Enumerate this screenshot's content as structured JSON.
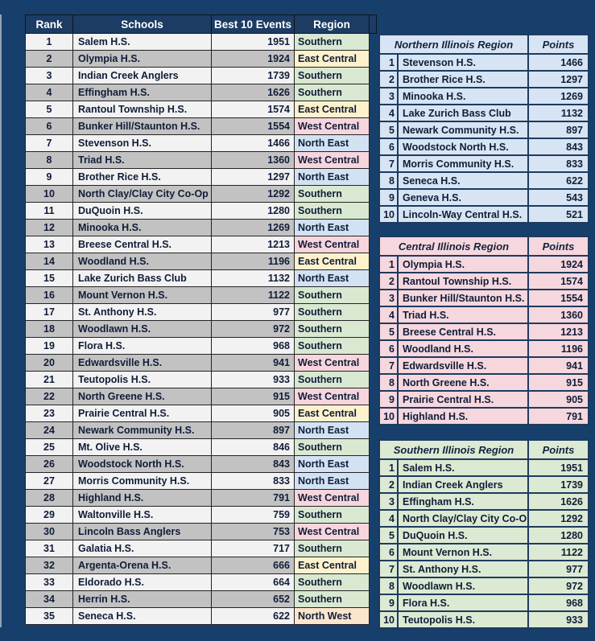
{
  "page": {
    "background": "#16406b",
    "header_bg": "#1c3c64",
    "stripe_light": "#f2f2f2",
    "stripe_gray": "#c2c2c2",
    "border_dark": "#232323",
    "regional_border": "#1e3a5f"
  },
  "region_colors": {
    "Southern": "#d9e8d1",
    "East Central": "#fdf2cc",
    "West Central": "#f6d5dc",
    "North East": "#d3e2f3",
    "North West": "#fce5cd"
  },
  "main_table": {
    "headers": {
      "rank": "Rank",
      "school": "Schools",
      "points": "Best 10 Events",
      "region": "Region"
    },
    "rows": [
      {
        "rank": "1",
        "school": "Salem H.S.",
        "points": "1951",
        "region": "Southern"
      },
      {
        "rank": "2",
        "school": "Olympia H.S.",
        "points": "1924",
        "region": "East Central"
      },
      {
        "rank": "3",
        "school": "Indian Creek Anglers",
        "points": "1739",
        "region": "Southern"
      },
      {
        "rank": "4",
        "school": "Effingham H.S.",
        "points": "1626",
        "region": "Southern"
      },
      {
        "rank": "5",
        "school": "Rantoul Township H.S.",
        "points": "1574",
        "region": "East Central"
      },
      {
        "rank": "6",
        "school": "Bunker Hill/Staunton H.S.",
        "points": "1554",
        "region": "West Central"
      },
      {
        "rank": "7",
        "school": "Stevenson H.S.",
        "points": "1466",
        "region": "North East"
      },
      {
        "rank": "8",
        "school": "Triad H.S.",
        "points": "1360",
        "region": "West Central"
      },
      {
        "rank": "9",
        "school": "Brother Rice H.S.",
        "points": "1297",
        "region": "North East"
      },
      {
        "rank": "10",
        "school": "North Clay/Clay City Co-Op",
        "points": "1292",
        "region": "Southern"
      },
      {
        "rank": "11",
        "school": "DuQuoin H.S.",
        "points": "1280",
        "region": "Southern"
      },
      {
        "rank": "12",
        "school": "Minooka H.S.",
        "points": "1269",
        "region": "North East"
      },
      {
        "rank": "13",
        "school": "Breese Central H.S.",
        "points": "1213",
        "region": "West Central"
      },
      {
        "rank": "14",
        "school": "Woodland H.S.",
        "points": "1196",
        "region": "East Central"
      },
      {
        "rank": "15",
        "school": "Lake Zurich Bass Club",
        "points": "1132",
        "region": "North East"
      },
      {
        "rank": "16",
        "school": "Mount Vernon H.S.",
        "points": "1122",
        "region": "Southern"
      },
      {
        "rank": "17",
        "school": "St. Anthony H.S.",
        "points": "977",
        "region": "Southern"
      },
      {
        "rank": "18",
        "school": "Woodlawn H.S.",
        "points": "972",
        "region": "Southern"
      },
      {
        "rank": "19",
        "school": "Flora H.S.",
        "points": "968",
        "region": "Southern"
      },
      {
        "rank": "20",
        "school": "Edwardsville H.S.",
        "points": "941",
        "region": "West Central"
      },
      {
        "rank": "21",
        "school": "Teutopolis H.S.",
        "points": "933",
        "region": "Southern"
      },
      {
        "rank": "22",
        "school": "North Greene H.S.",
        "points": "915",
        "region": "West Central"
      },
      {
        "rank": "23",
        "school": "Prairie Central H.S.",
        "points": "905",
        "region": "East Central"
      },
      {
        "rank": "24",
        "school": "Newark Community H.S.",
        "points": "897",
        "region": "North East"
      },
      {
        "rank": "25",
        "school": "Mt. Olive H.S.",
        "points": "846",
        "region": "Southern"
      },
      {
        "rank": "26",
        "school": "Woodstock North H.S.",
        "points": "843",
        "region": "North East"
      },
      {
        "rank": "27",
        "school": "Morris Community H.S.",
        "points": "833",
        "region": "North East"
      },
      {
        "rank": "28",
        "school": "Highland H.S.",
        "points": "791",
        "region": "West Central"
      },
      {
        "rank": "29",
        "school": "Waltonville H.S.",
        "points": "759",
        "region": "Southern"
      },
      {
        "rank": "30",
        "school": "Lincoln Bass Anglers",
        "points": "753",
        "region": "West Central"
      },
      {
        "rank": "31",
        "school": "Galatia H.S.",
        "points": "717",
        "region": "Southern"
      },
      {
        "rank": "32",
        "school": "Argenta-Orena H.S.",
        "points": "666",
        "region": "East Central"
      },
      {
        "rank": "33",
        "school": "Eldorado H.S.",
        "points": "664",
        "region": "Southern"
      },
      {
        "rank": "34",
        "school": "Herrin H.S.",
        "points": "652",
        "region": "Southern"
      },
      {
        "rank": "35",
        "school": "Seneca H.S.",
        "points": "622",
        "region": "North West"
      }
    ]
  },
  "region_tables": [
    {
      "title": "Northern Illinois Region",
      "points_label": "Points",
      "color": "#d6e4f4",
      "rows": [
        {
          "rank": "1",
          "school": "Stevenson H.S.",
          "points": "1466"
        },
        {
          "rank": "2",
          "school": "Brother Rice H.S.",
          "points": "1297"
        },
        {
          "rank": "3",
          "school": "Minooka H.S.",
          "points": "1269"
        },
        {
          "rank": "4",
          "school": "Lake Zurich Bass Club",
          "points": "1132"
        },
        {
          "rank": "5",
          "school": "Newark Community H.S.",
          "points": "897"
        },
        {
          "rank": "6",
          "school": "Woodstock North H.S.",
          "points": "843"
        },
        {
          "rank": "7",
          "school": "Morris Community H.S.",
          "points": "833"
        },
        {
          "rank": "8",
          "school": "Seneca H.S.",
          "points": "622"
        },
        {
          "rank": "9",
          "school": "Geneva H.S.",
          "points": "543"
        },
        {
          "rank": "10",
          "school": "Lincoln-Way Central H.S.",
          "points": "521"
        }
      ]
    },
    {
      "title": "Central Illinois Region",
      "points_label": "Points",
      "color": "#f5d7dd",
      "rows": [
        {
          "rank": "1",
          "school": "Olympia H.S.",
          "points": "1924"
        },
        {
          "rank": "2",
          "school": "Rantoul Township H.S.",
          "points": "1574"
        },
        {
          "rank": "3",
          "school": "Bunker Hill/Staunton H.S.",
          "points": "1554"
        },
        {
          "rank": "4",
          "school": "Triad H.S.",
          "points": "1360"
        },
        {
          "rank": "5",
          "school": "Breese Central H.S.",
          "points": "1213"
        },
        {
          "rank": "6",
          "school": "Woodland H.S.",
          "points": "1196"
        },
        {
          "rank": "7",
          "school": "Edwardsville H.S.",
          "points": "941"
        },
        {
          "rank": "8",
          "school": "North Greene H.S.",
          "points": "915"
        },
        {
          "rank": "9",
          "school": "Prairie Central H.S.",
          "points": "905"
        },
        {
          "rank": "10",
          "school": "Highland H.S.",
          "points": "791"
        }
      ]
    },
    {
      "title": "Southern Illinois Region",
      "points_label": "Points",
      "color": "#dcead3",
      "rows": [
        {
          "rank": "1",
          "school": "Salem H.S.",
          "points": "1951"
        },
        {
          "rank": "2",
          "school": "Indian Creek Anglers",
          "points": "1739"
        },
        {
          "rank": "3",
          "school": "Effingham H.S.",
          "points": "1626"
        },
        {
          "rank": "4",
          "school": "North Clay/Clay City Co-Op",
          "points": "1292"
        },
        {
          "rank": "5",
          "school": "DuQuoin H.S.",
          "points": "1280"
        },
        {
          "rank": "6",
          "school": "Mount Vernon H.S.",
          "points": "1122"
        },
        {
          "rank": "7",
          "school": "St. Anthony H.S.",
          "points": "977"
        },
        {
          "rank": "8",
          "school": "Woodlawn H.S.",
          "points": "972"
        },
        {
          "rank": "9",
          "school": "Flora H.S.",
          "points": "968"
        },
        {
          "rank": "10",
          "school": "Teutopolis H.S.",
          "points": "933"
        }
      ]
    }
  ]
}
